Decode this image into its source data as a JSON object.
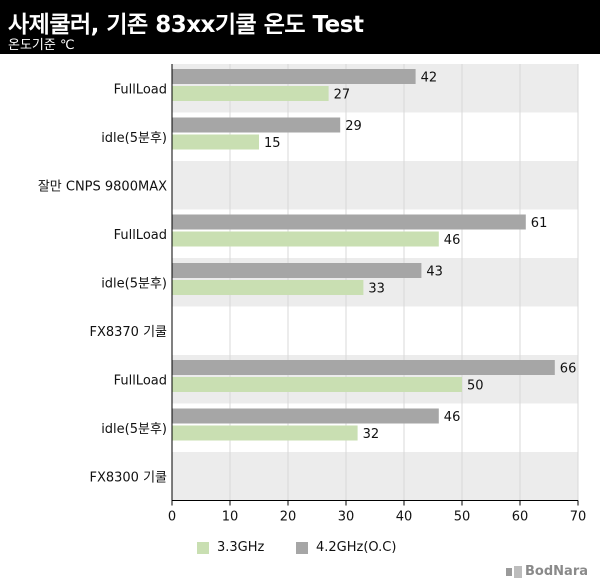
{
  "header": {
    "title": "사제쿨러, 기존 83xx기쿨  온도 Test",
    "subtitle": "온도기준 ℃"
  },
  "colors": {
    "header_bg": "#000000",
    "series_3_3": "#c9dfb2",
    "series_4_2": "#a6a6a6",
    "band_shade": "#ececec"
  },
  "chart_data": {
    "type": "bar",
    "orientation": "horizontal",
    "title": "사제쿨러, 기존 83xx기쿨  온도 Test",
    "subtitle": "온도기준 ℃",
    "categories": [
      "FullLoad",
      "idle(5분후)",
      "잘만 CNPS 9800MAX",
      "FullLoad",
      "idle(5분후)",
      "FX8370 기쿨",
      "FullLoad",
      "idle(5분후)",
      "FX8300 기쿨"
    ],
    "series": [
      {
        "name": "4.2GHz(O.C)",
        "values": [
          42,
          29,
          null,
          61,
          43,
          null,
          66,
          46,
          null
        ]
      },
      {
        "name": "3.3GHz",
        "values": [
          27,
          15,
          null,
          46,
          33,
          null,
          50,
          32,
          null
        ]
      }
    ],
    "xlim": [
      0,
      70
    ],
    "xticks": [
      0,
      10,
      20,
      30,
      40,
      50,
      60,
      70
    ],
    "grid": true,
    "legend_position": "bottom"
  },
  "legend": [
    {
      "label": "3.3GHz",
      "color": "#c9dfb2"
    },
    {
      "label": "4.2GHz(O.C)",
      "color": "#a6a6a6"
    }
  ],
  "watermark": "BodNara"
}
